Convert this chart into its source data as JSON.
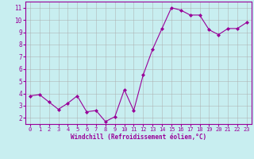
{
  "x": [
    0,
    1,
    2,
    3,
    4,
    5,
    6,
    7,
    8,
    9,
    10,
    11,
    12,
    13,
    14,
    15,
    16,
    17,
    18,
    19,
    20,
    21,
    22,
    23
  ],
  "y": [
    3.8,
    3.9,
    3.3,
    2.7,
    3.2,
    3.8,
    2.5,
    2.6,
    1.7,
    2.1,
    4.3,
    2.6,
    5.5,
    7.6,
    9.3,
    11.0,
    10.8,
    10.4,
    10.4,
    9.2,
    8.8,
    9.3,
    9.3,
    9.8
  ],
  "line_color": "#990099",
  "marker": "D",
  "marker_size": 2,
  "bg_color": "#c8eef0",
  "grid_color": "#aaaaaa",
  "xlabel": "Windchill (Refroidissement éolien,°C)",
  "xlabel_color": "#990099",
  "tick_color": "#990099",
  "ylim": [
    1.5,
    11.5
  ],
  "yticks": [
    2,
    3,
    4,
    5,
    6,
    7,
    8,
    9,
    10,
    11
  ],
  "xlim": [
    -0.5,
    23.5
  ],
  "xticks": [
    0,
    1,
    2,
    3,
    4,
    5,
    6,
    7,
    8,
    9,
    10,
    11,
    12,
    13,
    14,
    15,
    16,
    17,
    18,
    19,
    20,
    21,
    22,
    23
  ]
}
